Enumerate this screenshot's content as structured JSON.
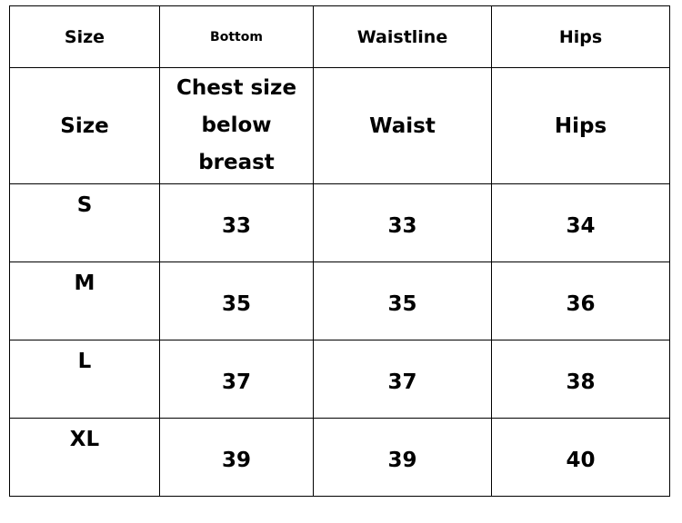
{
  "header_row_1": [
    "Size",
    "Bottom",
    "Waistline",
    "Hips"
  ],
  "header_row_2": [
    "Size",
    "Chest size below breast",
    "Waist",
    "Hips"
  ],
  "rows": [
    {
      "size": "S",
      "bottom": "33",
      "waist": "33",
      "hips": "34"
    },
    {
      "size": "M",
      "bottom": "35",
      "waist": "35",
      "hips": "36"
    },
    {
      "size": "L",
      "bottom": "37",
      "waist": "37",
      "hips": "38"
    },
    {
      "size": "XL",
      "bottom": "39",
      "waist": "39",
      "hips": "40"
    }
  ]
}
